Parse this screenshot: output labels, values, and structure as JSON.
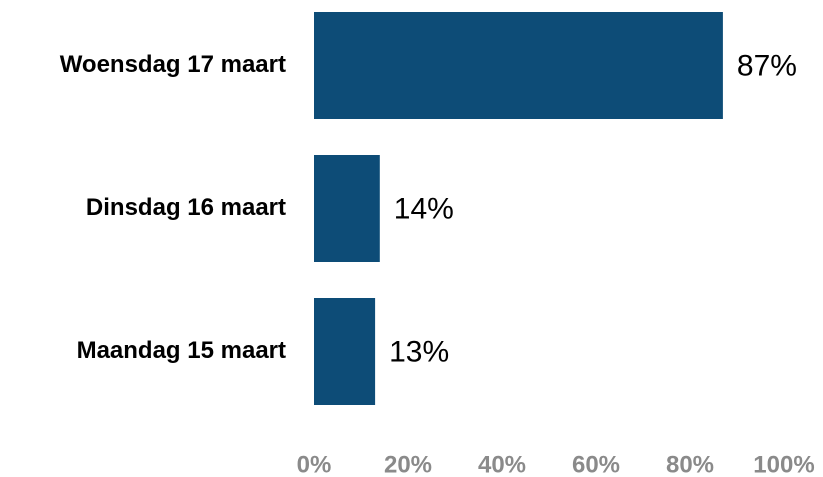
{
  "chart_data": {
    "type": "barh",
    "categories": [
      "Woensdag 17 maart",
      "Dinsdag 16 maart",
      "Maandag 15 maart"
    ],
    "values": [
      87,
      14,
      13
    ],
    "value_labels": [
      "87%",
      "14%",
      "13%"
    ],
    "color": "#0d4c77",
    "xlim": [
      0,
      100
    ],
    "xticks": [
      {
        "value": 0,
        "label": "0%"
      },
      {
        "value": 20,
        "label": "20%"
      },
      {
        "value": 40,
        "label": "40%"
      },
      {
        "value": 60,
        "label": "60%"
      },
      {
        "value": 80,
        "label": "80%"
      },
      {
        "value": 100,
        "label": "100%"
      }
    ],
    "grid": false
  }
}
